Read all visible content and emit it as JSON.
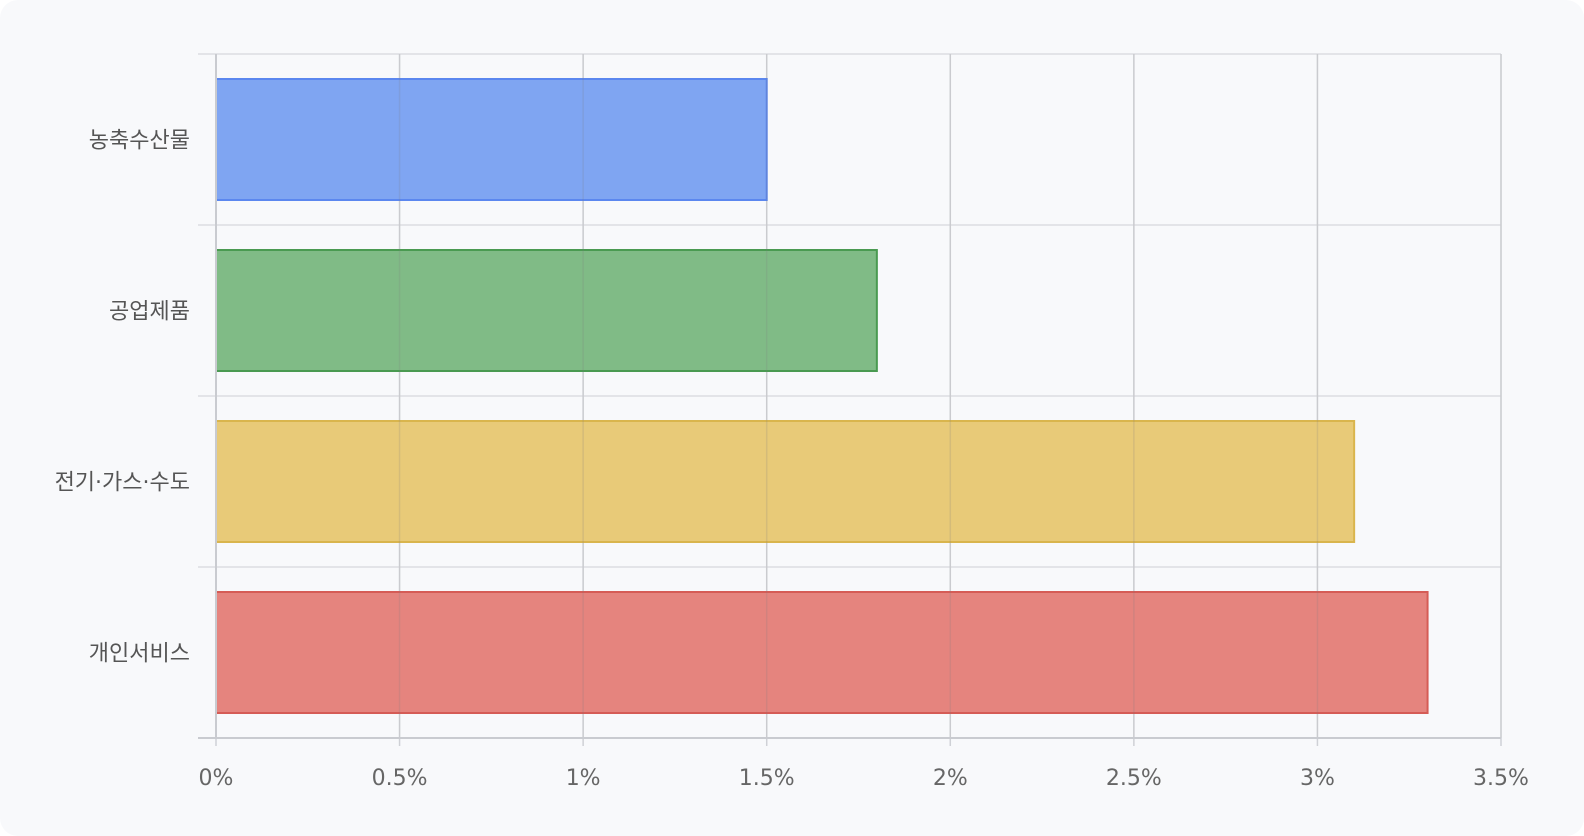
{
  "chart_data": {
    "type": "bar",
    "orientation": "horizontal",
    "categories": [
      "농축수산물",
      "공업제품",
      "전기·가스·수도",
      "개인서비스"
    ],
    "values": [
      1.5,
      1.8,
      3.1,
      3.3
    ],
    "unit": "%",
    "title": "",
    "xlabel": "",
    "ylabel": "",
    "xlim": [
      0,
      3.5
    ],
    "x_ticks": [
      0,
      0.5,
      1,
      1.5,
      2,
      2.5,
      3,
      3.5
    ],
    "x_tick_labels": [
      "0%",
      "0.5%",
      "1%",
      "1.5%",
      "2%",
      "2.5%",
      "3%",
      "3.5%"
    ],
    "grid": true,
    "legend": "none",
    "colors": {
      "fill": [
        "#7fa5f2",
        "#80bb86",
        "#e8ca78",
        "#e5847e"
      ],
      "stroke": [
        "#5b87ef",
        "#4a9a51",
        "#d9b54d",
        "#d55c56"
      ]
    }
  }
}
